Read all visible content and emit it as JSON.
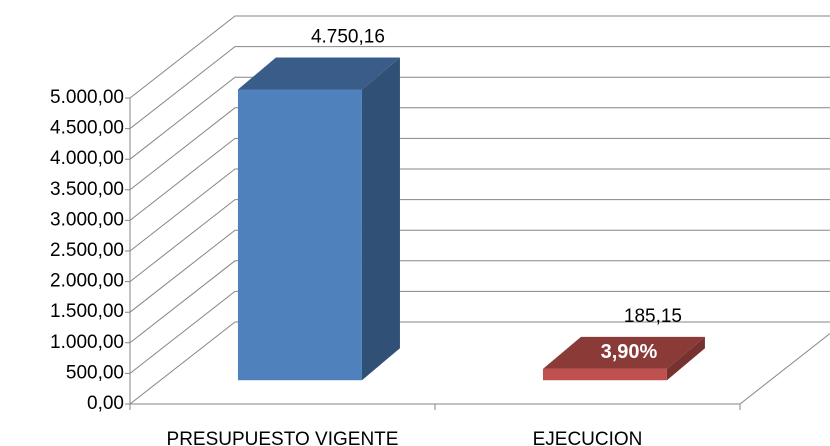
{
  "chart_data": {
    "type": "bar3d",
    "categories": [
      "PRESUPUESTO VIGENTE",
      "EJECUCION"
    ],
    "values": [
      4750.16,
      185.15
    ],
    "value_labels": [
      "4.750,16",
      "185,15"
    ],
    "colors": [
      "#4f81bd",
      "#c0504d"
    ],
    "annotations": [
      {
        "text": "3,90%",
        "category": 1
      }
    ],
    "ylim": [
      0,
      5000
    ],
    "yticks": [
      {
        "value": 0,
        "label": "0,00"
      },
      {
        "value": 500,
        "label": "500,00"
      },
      {
        "value": 1000,
        "label": "1.000,00"
      },
      {
        "value": 1500,
        "label": "1.500,00"
      },
      {
        "value": 2000,
        "label": "2.000,00"
      },
      {
        "value": 2500,
        "label": "2.500,00"
      },
      {
        "value": 3000,
        "label": "3.000,00"
      },
      {
        "value": 3500,
        "label": "3.500,00"
      },
      {
        "value": 4000,
        "label": "4.000,00"
      },
      {
        "value": 4500,
        "label": "4.500,00"
      },
      {
        "value": 5000,
        "label": "5.000,00"
      }
    ],
    "grid": true
  }
}
